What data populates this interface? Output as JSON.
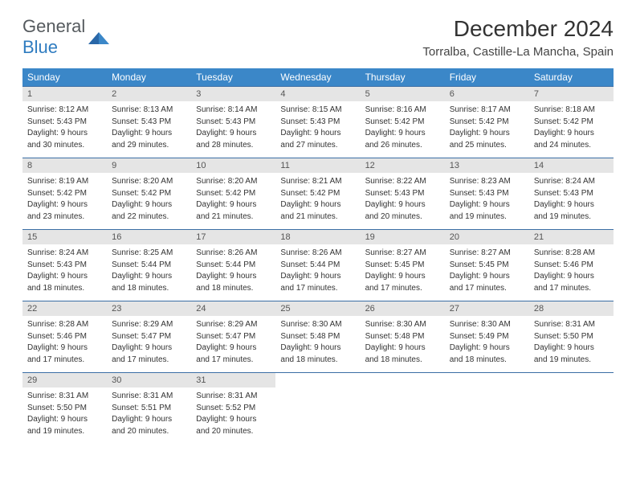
{
  "logo": {
    "text1": "General",
    "text2": "Blue"
  },
  "header": {
    "title": "December 2024",
    "location": "Torralba, Castille-La Mancha, Spain"
  },
  "dayHeaders": [
    "Sunday",
    "Monday",
    "Tuesday",
    "Wednesday",
    "Thursday",
    "Friday",
    "Saturday"
  ],
  "colors": {
    "headerBg": "#3b87c8",
    "daynumBg": "#e5e5e5",
    "rule": "#3b6ea5"
  },
  "weeks": [
    [
      {
        "n": "1",
        "sr": "Sunrise: 8:12 AM",
        "ss": "Sunset: 5:43 PM",
        "dl1": "Daylight: 9 hours",
        "dl2": "and 30 minutes."
      },
      {
        "n": "2",
        "sr": "Sunrise: 8:13 AM",
        "ss": "Sunset: 5:43 PM",
        "dl1": "Daylight: 9 hours",
        "dl2": "and 29 minutes."
      },
      {
        "n": "3",
        "sr": "Sunrise: 8:14 AM",
        "ss": "Sunset: 5:43 PM",
        "dl1": "Daylight: 9 hours",
        "dl2": "and 28 minutes."
      },
      {
        "n": "4",
        "sr": "Sunrise: 8:15 AM",
        "ss": "Sunset: 5:43 PM",
        "dl1": "Daylight: 9 hours",
        "dl2": "and 27 minutes."
      },
      {
        "n": "5",
        "sr": "Sunrise: 8:16 AM",
        "ss": "Sunset: 5:42 PM",
        "dl1": "Daylight: 9 hours",
        "dl2": "and 26 minutes."
      },
      {
        "n": "6",
        "sr": "Sunrise: 8:17 AM",
        "ss": "Sunset: 5:42 PM",
        "dl1": "Daylight: 9 hours",
        "dl2": "and 25 minutes."
      },
      {
        "n": "7",
        "sr": "Sunrise: 8:18 AM",
        "ss": "Sunset: 5:42 PM",
        "dl1": "Daylight: 9 hours",
        "dl2": "and 24 minutes."
      }
    ],
    [
      {
        "n": "8",
        "sr": "Sunrise: 8:19 AM",
        "ss": "Sunset: 5:42 PM",
        "dl1": "Daylight: 9 hours",
        "dl2": "and 23 minutes."
      },
      {
        "n": "9",
        "sr": "Sunrise: 8:20 AM",
        "ss": "Sunset: 5:42 PM",
        "dl1": "Daylight: 9 hours",
        "dl2": "and 22 minutes."
      },
      {
        "n": "10",
        "sr": "Sunrise: 8:20 AM",
        "ss": "Sunset: 5:42 PM",
        "dl1": "Daylight: 9 hours",
        "dl2": "and 21 minutes."
      },
      {
        "n": "11",
        "sr": "Sunrise: 8:21 AM",
        "ss": "Sunset: 5:42 PM",
        "dl1": "Daylight: 9 hours",
        "dl2": "and 21 minutes."
      },
      {
        "n": "12",
        "sr": "Sunrise: 8:22 AM",
        "ss": "Sunset: 5:43 PM",
        "dl1": "Daylight: 9 hours",
        "dl2": "and 20 minutes."
      },
      {
        "n": "13",
        "sr": "Sunrise: 8:23 AM",
        "ss": "Sunset: 5:43 PM",
        "dl1": "Daylight: 9 hours",
        "dl2": "and 19 minutes."
      },
      {
        "n": "14",
        "sr": "Sunrise: 8:24 AM",
        "ss": "Sunset: 5:43 PM",
        "dl1": "Daylight: 9 hours",
        "dl2": "and 19 minutes."
      }
    ],
    [
      {
        "n": "15",
        "sr": "Sunrise: 8:24 AM",
        "ss": "Sunset: 5:43 PM",
        "dl1": "Daylight: 9 hours",
        "dl2": "and 18 minutes."
      },
      {
        "n": "16",
        "sr": "Sunrise: 8:25 AM",
        "ss": "Sunset: 5:44 PM",
        "dl1": "Daylight: 9 hours",
        "dl2": "and 18 minutes."
      },
      {
        "n": "17",
        "sr": "Sunrise: 8:26 AM",
        "ss": "Sunset: 5:44 PM",
        "dl1": "Daylight: 9 hours",
        "dl2": "and 18 minutes."
      },
      {
        "n": "18",
        "sr": "Sunrise: 8:26 AM",
        "ss": "Sunset: 5:44 PM",
        "dl1": "Daylight: 9 hours",
        "dl2": "and 17 minutes."
      },
      {
        "n": "19",
        "sr": "Sunrise: 8:27 AM",
        "ss": "Sunset: 5:45 PM",
        "dl1": "Daylight: 9 hours",
        "dl2": "and 17 minutes."
      },
      {
        "n": "20",
        "sr": "Sunrise: 8:27 AM",
        "ss": "Sunset: 5:45 PM",
        "dl1": "Daylight: 9 hours",
        "dl2": "and 17 minutes."
      },
      {
        "n": "21",
        "sr": "Sunrise: 8:28 AM",
        "ss": "Sunset: 5:46 PM",
        "dl1": "Daylight: 9 hours",
        "dl2": "and 17 minutes."
      }
    ],
    [
      {
        "n": "22",
        "sr": "Sunrise: 8:28 AM",
        "ss": "Sunset: 5:46 PM",
        "dl1": "Daylight: 9 hours",
        "dl2": "and 17 minutes."
      },
      {
        "n": "23",
        "sr": "Sunrise: 8:29 AM",
        "ss": "Sunset: 5:47 PM",
        "dl1": "Daylight: 9 hours",
        "dl2": "and 17 minutes."
      },
      {
        "n": "24",
        "sr": "Sunrise: 8:29 AM",
        "ss": "Sunset: 5:47 PM",
        "dl1": "Daylight: 9 hours",
        "dl2": "and 17 minutes."
      },
      {
        "n": "25",
        "sr": "Sunrise: 8:30 AM",
        "ss": "Sunset: 5:48 PM",
        "dl1": "Daylight: 9 hours",
        "dl2": "and 18 minutes."
      },
      {
        "n": "26",
        "sr": "Sunrise: 8:30 AM",
        "ss": "Sunset: 5:48 PM",
        "dl1": "Daylight: 9 hours",
        "dl2": "and 18 minutes."
      },
      {
        "n": "27",
        "sr": "Sunrise: 8:30 AM",
        "ss": "Sunset: 5:49 PM",
        "dl1": "Daylight: 9 hours",
        "dl2": "and 18 minutes."
      },
      {
        "n": "28",
        "sr": "Sunrise: 8:31 AM",
        "ss": "Sunset: 5:50 PM",
        "dl1": "Daylight: 9 hours",
        "dl2": "and 19 minutes."
      }
    ],
    [
      {
        "n": "29",
        "sr": "Sunrise: 8:31 AM",
        "ss": "Sunset: 5:50 PM",
        "dl1": "Daylight: 9 hours",
        "dl2": "and 19 minutes."
      },
      {
        "n": "30",
        "sr": "Sunrise: 8:31 AM",
        "ss": "Sunset: 5:51 PM",
        "dl1": "Daylight: 9 hours",
        "dl2": "and 20 minutes."
      },
      {
        "n": "31",
        "sr": "Sunrise: 8:31 AM",
        "ss": "Sunset: 5:52 PM",
        "dl1": "Daylight: 9 hours",
        "dl2": "and 20 minutes."
      },
      null,
      null,
      null,
      null
    ]
  ]
}
